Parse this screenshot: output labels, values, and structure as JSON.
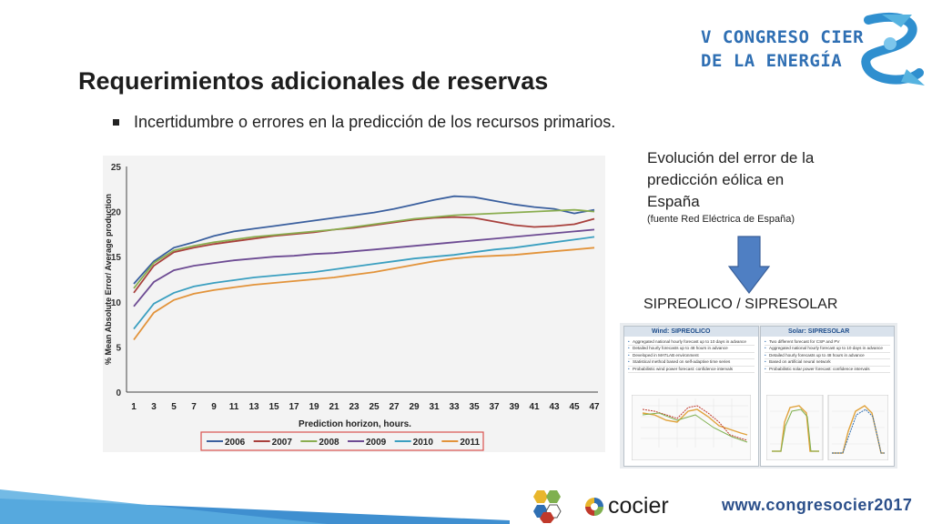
{
  "slide": {
    "title": "Requerimientos adicionales de reservas",
    "bullet": "Incertidumbre o errores en la predicción  de los recursos primarios."
  },
  "logo": {
    "line1": "V CONGRESO CIER",
    "line2": "DE LA ENERGÍA"
  },
  "side": {
    "line1": "Evolución del error de la",
    "line2": "predicción eólica en",
    "line3": "España",
    "source": "(fuente Red Eléctrica de España)"
  },
  "sipre_label": "SIPREOLICO / SIPRESOLAR",
  "panels": {
    "wind": {
      "title": "Wind:  SIPREOLICO",
      "items": [
        "Aggregated national hourly forecast up to 10 days in advance",
        "Detailed hourly forecasts up to 48 hours in advance",
        "Developed in MATLAB environment",
        "Statistical method based on self-adaptive time series",
        "Probabilistic wind power forecast: confidence intervals"
      ]
    },
    "solar": {
      "title": "Solar:  SIPRESOLAR",
      "items": [
        "Two different forecast for CSP and PV",
        "Aggregated national hourly forecast up to 10 days in advance",
        "Detailed hourly forecasts up to 48 hours in advance",
        "Based on artificial neural network",
        "Probabilistic solar power forecast: confidence intervals"
      ]
    }
  },
  "footer": {
    "brand": "cocier",
    "url": "www.congresocier2017"
  },
  "chart_data": {
    "type": "line",
    "ylabel": "% Mean Absolute Error/ Average production",
    "xlabel": "Prediction horizon, hours.",
    "ylim": [
      0,
      25
    ],
    "yticks": [
      "0",
      "5",
      "10",
      "15",
      "20",
      "25"
    ],
    "x": [
      1,
      3,
      5,
      7,
      9,
      11,
      13,
      15,
      17,
      19,
      21,
      23,
      25,
      27,
      29,
      31,
      33,
      35,
      37,
      39,
      41,
      43,
      45,
      47
    ],
    "xtick_labels": [
      "1",
      "3",
      "5",
      "7",
      "9",
      "11",
      "13",
      "15",
      "17",
      "19",
      "21",
      "23",
      "25",
      "27",
      "29",
      "31",
      "33",
      "35",
      "37",
      "39",
      "41",
      "43",
      "45",
      "47"
    ],
    "grid": false,
    "legend_position": "bottom",
    "series": [
      {
        "name": "2006",
        "color": "#3a5f9e",
        "values": [
          12.0,
          14.5,
          16.0,
          16.6,
          17.3,
          17.8,
          18.1,
          18.4,
          18.7,
          19.0,
          19.3,
          19.6,
          19.9,
          20.3,
          20.8,
          21.3,
          21.7,
          21.6,
          21.2,
          20.8,
          20.5,
          20.3,
          19.8,
          20.2
        ]
      },
      {
        "name": "2007",
        "color": "#a8403c",
        "values": [
          11.0,
          14.0,
          15.5,
          16.0,
          16.4,
          16.7,
          17.0,
          17.3,
          17.5,
          17.7,
          18.0,
          18.2,
          18.5,
          18.8,
          19.1,
          19.3,
          19.4,
          19.3,
          18.9,
          18.5,
          18.3,
          18.4,
          18.6,
          19.2
        ]
      },
      {
        "name": "2008",
        "color": "#8aad4f",
        "values": [
          11.5,
          14.3,
          15.7,
          16.2,
          16.6,
          16.9,
          17.2,
          17.4,
          17.6,
          17.8,
          18.0,
          18.3,
          18.6,
          18.9,
          19.2,
          19.4,
          19.6,
          19.7,
          19.8,
          19.9,
          20.0,
          20.1,
          20.2,
          20.0
        ]
      },
      {
        "name": "2009",
        "color": "#6d4b93",
        "values": [
          9.5,
          12.2,
          13.5,
          14.0,
          14.3,
          14.6,
          14.8,
          15.0,
          15.1,
          15.3,
          15.4,
          15.6,
          15.8,
          16.0,
          16.2,
          16.4,
          16.6,
          16.8,
          17.0,
          17.2,
          17.4,
          17.6,
          17.8,
          18.0
        ]
      },
      {
        "name": "2010",
        "color": "#3a9fc0",
        "values": [
          7.0,
          9.8,
          11.0,
          11.7,
          12.1,
          12.4,
          12.7,
          12.9,
          13.1,
          13.3,
          13.6,
          13.9,
          14.2,
          14.5,
          14.8,
          15.0,
          15.2,
          15.5,
          15.8,
          16.0,
          16.3,
          16.6,
          16.9,
          17.2
        ]
      },
      {
        "name": "2011",
        "color": "#e2933a",
        "values": [
          5.8,
          8.8,
          10.2,
          10.9,
          11.3,
          11.6,
          11.9,
          12.1,
          12.3,
          12.5,
          12.7,
          13.0,
          13.3,
          13.7,
          14.1,
          14.5,
          14.8,
          15.0,
          15.1,
          15.2,
          15.4,
          15.6,
          15.8,
          16.0
        ]
      }
    ]
  },
  "colors": {
    "title": "#1d1d1d",
    "brand_blue": "#2f6fb3",
    "arrow_fill": "#4f7fc3",
    "footer_navy": "#2b4f8a"
  }
}
